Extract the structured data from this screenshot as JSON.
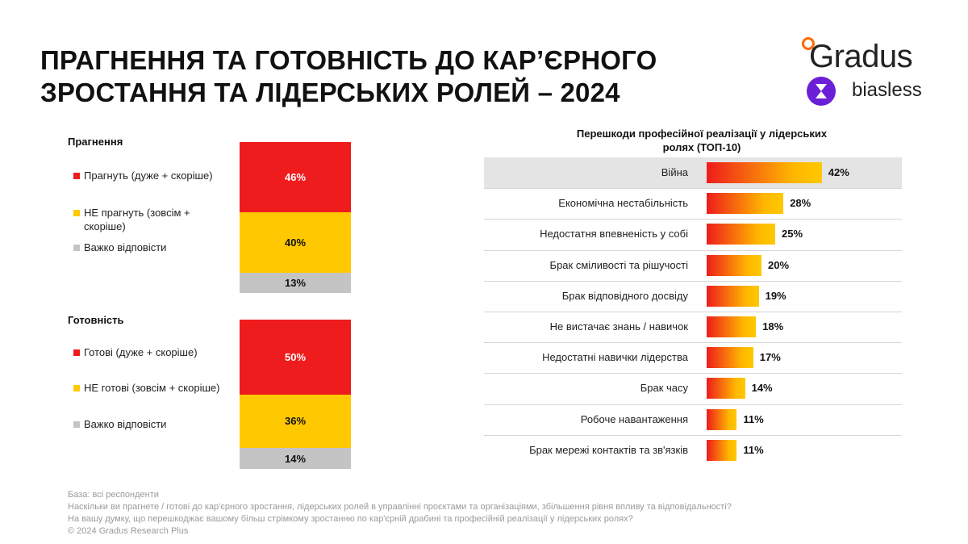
{
  "title": {
    "line1": "ПРАГНЕННЯ ТА ГОТОВНІСТЬ ДО КАР’ЄРНОГО",
    "line2": "ЗРОСТАННЯ ТА ЛІДЕРСЬКИХ РОЛЕЙ – 2024"
  },
  "logos": {
    "gradus": "Gradus",
    "biasless": "biasless"
  },
  "colors": {
    "red": "#ee1c1c",
    "yellow": "#ffc800",
    "grey": "#c4c4c4",
    "brand_orange": "#ff6a00",
    "biasless_purple": "#6b1fd6"
  },
  "chart_data": [
    {
      "type": "bar",
      "stacked": true,
      "title": "Прагнення",
      "series": [
        {
          "name": "Прагнуть (дуже + скоріше)",
          "value": 46,
          "label": "46%",
          "color": "#ee1c1c"
        },
        {
          "name": "НЕ прагнуть (зовсім + скоріше)",
          "value": 40,
          "label": "40%",
          "color": "#ffc800"
        },
        {
          "name": "Важко відповісти",
          "value": 13,
          "label": "13%",
          "color": "#c4c4c4"
        }
      ]
    },
    {
      "type": "bar",
      "stacked": true,
      "title": "Готовність",
      "series": [
        {
          "name": "Готові (дуже + скоріше)",
          "value": 50,
          "label": "50%",
          "color": "#ee1c1c"
        },
        {
          "name": "НЕ готові (зовсім + скоріше)",
          "value": 36,
          "label": "36%",
          "color": "#ffc800"
        },
        {
          "name": "Важко відповісти",
          "value": 14,
          "label": "14%",
          "color": "#c4c4c4"
        }
      ]
    },
    {
      "type": "bar",
      "orientation": "horizontal",
      "title": "Перешкоди професійної реалізації у лідерських ролях (ТОП-10)",
      "categories": [
        "Війна",
        "Економічна нестабільність",
        "Недостатня впевненість у собі",
        "Брак сміливості та рішучості",
        "Брак відповідного досвіду",
        "Не вистачає знань / навичок",
        "Недостатні навички лідерства",
        "Брак часу",
        "Робоче навантаження",
        "Брак мережі контактів та зв'язків"
      ],
      "values": [
        42,
        28,
        25,
        20,
        19,
        18,
        17,
        14,
        11,
        11
      ],
      "labels": [
        "42%",
        "28%",
        "25%",
        "20%",
        "19%",
        "18%",
        "17%",
        "14%",
        "11%",
        "11%"
      ],
      "highlight_index": 0
    }
  ],
  "footer": {
    "line1": "База: всі респонденти",
    "line2": "Наскільки ви прагнете / готові до кар'єрного зростання, лідерських ролей в управлінні проєктами та організаціями, збільшення рівня впливу та відповідальності?",
    "line3": "На вашу думку, що перешкоджає вашому більш стрімкому зростанню по кар'єрній драбині та професійній реалізації у лідерських ролях?",
    "line4": "© 2024 Gradus Research Plus"
  }
}
